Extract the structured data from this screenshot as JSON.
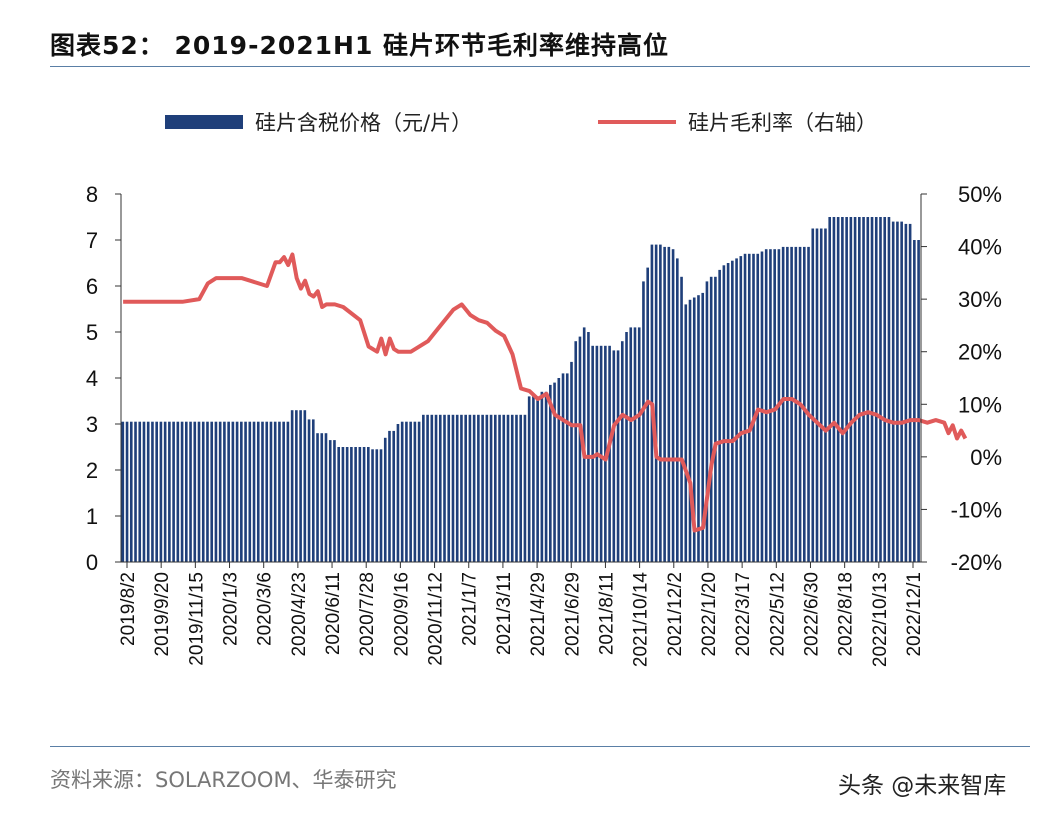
{
  "header": {
    "title": "图表52： 2019-2021H1 硅片环节毛利率维持高位"
  },
  "footer": {
    "source": "资料来源：SOLARZOOM、华泰研究",
    "watermark": "头条 @未来智库"
  },
  "colors": {
    "bar": "#1f3f7a",
    "line": "#e05a5a",
    "rule": "#5a7fa6"
  },
  "chart_data": {
    "type": "bar+line",
    "title": "2019-2021H1 硅片环节毛利率维持高位",
    "legend_position": "top",
    "grid": false,
    "x_tick_labels": [
      "2019/8/2",
      "2019/9/20",
      "2019/11/15",
      "2020/1/3",
      "2020/3/6",
      "2020/4/23",
      "2020/6/11",
      "2020/7/28",
      "2020/9/16",
      "2020/11/12",
      "2021/1/7",
      "2021/3/11",
      "2021/4/29",
      "2021/6/29",
      "2021/8/11",
      "2021/10/14",
      "2021/12/2",
      "2022/1/20",
      "2022/3/17",
      "2022/5/12",
      "2022/6/30",
      "2022/8/18",
      "2022/10/13",
      "2022/12/1"
    ],
    "y_left": {
      "min": 0,
      "max": 8,
      "ticks": [
        0,
        1,
        2,
        3,
        4,
        5,
        6,
        7,
        8
      ]
    },
    "y_right": {
      "min": -20,
      "max": 50,
      "ticks": [
        "-20%",
        "-10%",
        "0%",
        "10%",
        "20%",
        "30%",
        "40%",
        "50%"
      ]
    },
    "series": [
      {
        "name": "硅片含税价格（元/片）",
        "type": "bar",
        "axis": "left",
        "values": [
          3.05,
          3.05,
          3.05,
          3.05,
          3.05,
          3.05,
          3.05,
          3.05,
          3.05,
          3.05,
          3.05,
          3.05,
          3.05,
          3.05,
          3.05,
          3.05,
          3.05,
          3.05,
          3.05,
          3.05,
          3.05,
          3.05,
          3.05,
          3.05,
          3.05,
          3.05,
          3.05,
          3.05,
          3.05,
          3.05,
          3.05,
          3.05,
          3.05,
          3.05,
          3.05,
          3.05,
          3.05,
          3.05,
          3.05,
          3.05,
          3.3,
          3.3,
          3.3,
          3.3,
          3.1,
          3.1,
          2.8,
          2.8,
          2.8,
          2.65,
          2.65,
          2.5,
          2.5,
          2.5,
          2.5,
          2.5,
          2.5,
          2.5,
          2.5,
          2.45,
          2.45,
          2.45,
          2.7,
          2.85,
          2.85,
          3.0,
          3.05,
          3.05,
          3.05,
          3.05,
          3.05,
          3.2,
          3.2,
          3.2,
          3.2,
          3.2,
          3.2,
          3.2,
          3.2,
          3.2,
          3.2,
          3.2,
          3.2,
          3.2,
          3.2,
          3.2,
          3.2,
          3.2,
          3.2,
          3.2,
          3.2,
          3.2,
          3.2,
          3.2,
          3.2,
          3.2,
          3.6,
          3.6,
          3.6,
          3.7,
          3.7,
          3.85,
          3.9,
          4.0,
          4.1,
          4.1,
          4.35,
          4.8,
          4.9,
          5.1,
          5.0,
          4.7,
          4.7,
          4.7,
          4.7,
          4.7,
          4.6,
          4.6,
          4.8,
          5.0,
          5.1,
          5.1,
          5.1,
          6.1,
          6.4,
          6.9,
          6.9,
          6.9,
          6.85,
          6.85,
          6.8,
          6.6,
          6.2,
          5.6,
          5.7,
          5.75,
          5.8,
          5.85,
          6.1,
          6.2,
          6.2,
          6.35,
          6.45,
          6.5,
          6.55,
          6.6,
          6.65,
          6.7,
          6.7,
          6.7,
          6.7,
          6.75,
          6.8,
          6.8,
          6.8,
          6.8,
          6.85,
          6.85,
          6.85,
          6.85,
          6.85,
          6.85,
          6.85,
          7.25,
          7.25,
          7.25,
          7.25,
          7.5,
          7.5,
          7.5,
          7.5,
          7.5,
          7.5,
          7.5,
          7.5,
          7.5,
          7.5,
          7.5,
          7.5,
          7.5,
          7.5,
          7.5,
          7.4,
          7.4,
          7.4,
          7.35,
          7.35,
          7.0,
          7.0
        ]
      },
      {
        "name": "硅片毛利率（右轴）",
        "type": "line",
        "axis": "right",
        "x_index": [
          0,
          10,
          14,
          18,
          20,
          22,
          26,
          28,
          30,
          34,
          36,
          37,
          38,
          39,
          40,
          41,
          42,
          43,
          44,
          45,
          46,
          47,
          48,
          50,
          52,
          56,
          58,
          60,
          61,
          62,
          63,
          64,
          65,
          66,
          68,
          72,
          74,
          76,
          78,
          80,
          82,
          84,
          86,
          88,
          90,
          92,
          94,
          96,
          98,
          100,
          102,
          104,
          106,
          108,
          109,
          110,
          111,
          112,
          114,
          116,
          118,
          120,
          122,
          124,
          125,
          126,
          127,
          128,
          130,
          132,
          134,
          135,
          137,
          139,
          140,
          142,
          144,
          146,
          148,
          149,
          150,
          152,
          154,
          156,
          158,
          160,
          162,
          164,
          166,
          168,
          170,
          172,
          174,
          176,
          178,
          180,
          182,
          184,
          186,
          188,
          190,
          192,
          194,
          195,
          196,
          197,
          198,
          199
        ],
        "values": [
          29.5,
          29.5,
          29.5,
          30,
          33,
          34,
          34,
          34,
          33.5,
          32.5,
          37,
          37,
          38,
          36.5,
          38.5,
          34,
          32,
          33.5,
          31,
          30.5,
          31.5,
          28.5,
          29,
          29,
          28.5,
          26,
          21,
          20,
          22.5,
          19.5,
          22.5,
          20.5,
          20,
          20,
          20,
          22,
          24,
          26,
          28,
          29,
          27,
          26,
          25.5,
          24,
          23,
          19.5,
          13,
          12.5,
          11,
          12,
          8,
          7,
          6,
          6,
          0,
          0,
          0,
          0.5,
          -0.5,
          6,
          8,
          7,
          8,
          10.5,
          10,
          0,
          -0.5,
          -0.5,
          -0.5,
          -0.5,
          -5,
          -14,
          -13.5,
          -1.5,
          2.5,
          3,
          3,
          4.5,
          5,
          7,
          9,
          8.5,
          9,
          11,
          11,
          10,
          8,
          6.5,
          5,
          6.5,
          4.5,
          6.5,
          8,
          8.5,
          8,
          7,
          6.5,
          6.5,
          7,
          7,
          6.5,
          7,
          6.5,
          4.5,
          6,
          3.5,
          5,
          3.5
        ]
      }
    ]
  }
}
